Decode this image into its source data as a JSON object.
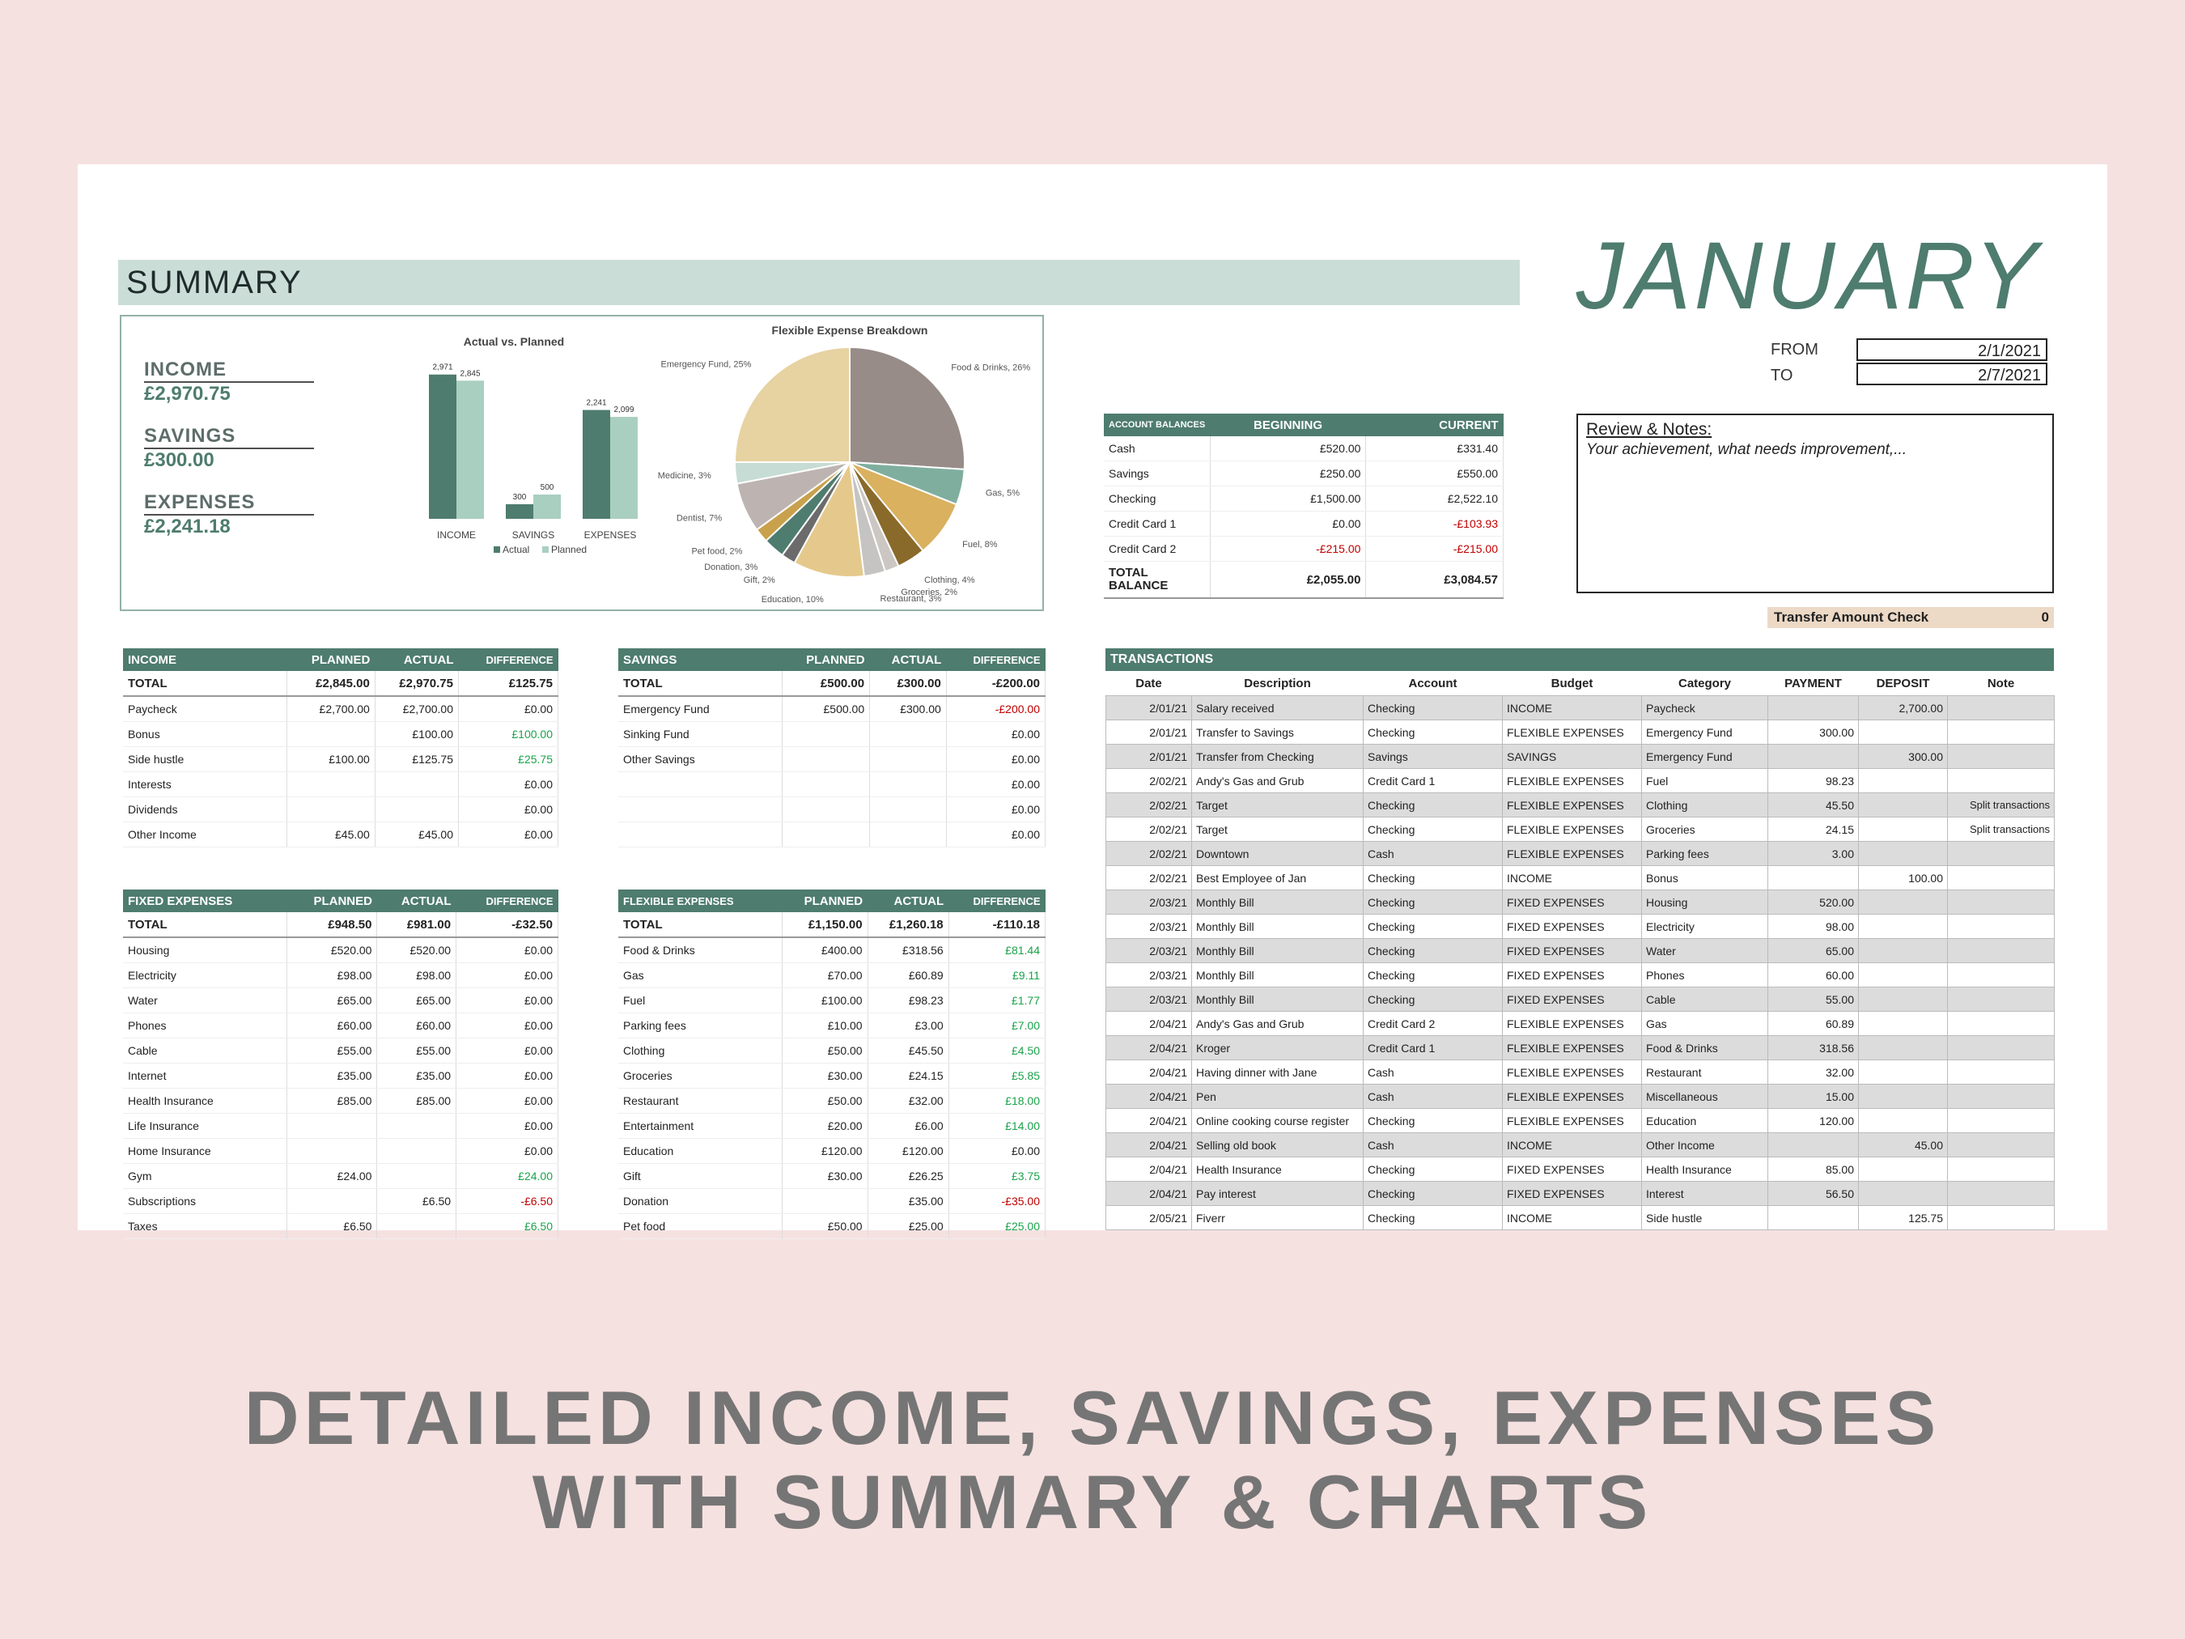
{
  "month": "JANUARY",
  "summary": {
    "title": "SUMMARY",
    "kpis": [
      {
        "label": "INCOME",
        "value": "£2,970.75"
      },
      {
        "label": "SAVINGS",
        "value": "£300.00"
      },
      {
        "label": "EXPENSES",
        "value": "£2,241.18"
      }
    ]
  },
  "dates": {
    "from_label": "FROM",
    "from": "2/1/2021",
    "to_label": "TO",
    "to": "2/7/2021"
  },
  "notes": {
    "title": "Review & Notes:",
    "text": "Your achievement, what needs improvement,..."
  },
  "transfer_check": {
    "label": "Transfer Amount Check",
    "value": "0"
  },
  "accounts": {
    "headers": [
      "ACCOUNT BALANCES",
      "BEGINNING",
      "CURRENT"
    ],
    "rows": [
      [
        "Cash",
        "£520.00",
        "£331.40"
      ],
      [
        "Savings",
        "£250.00",
        "£550.00"
      ],
      [
        "Checking",
        "£1,500.00",
        "£2,522.10"
      ],
      [
        "Credit Card 1",
        "£0.00",
        "-£103.93"
      ],
      [
        "Credit Card 2",
        "-£215.00",
        "-£215.00"
      ]
    ],
    "total": [
      "TOTAL BALANCE",
      "£2,055.00",
      "£3,084.57"
    ]
  },
  "income_table": {
    "headers": [
      "INCOME",
      "PLANNED",
      "ACTUAL",
      "DIFFERENCE"
    ],
    "total": [
      "TOTAL",
      "£2,845.00",
      "£2,970.75",
      "£125.75"
    ],
    "rows": [
      [
        "Paycheck",
        "£2,700.00",
        "£2,700.00",
        "£0.00"
      ],
      [
        "Bonus",
        "",
        "£100.00",
        "£100.00"
      ],
      [
        "Side hustle",
        "£100.00",
        "£125.75",
        "£25.75"
      ],
      [
        "Interests",
        "",
        "",
        "£0.00"
      ],
      [
        "Dividends",
        "",
        "",
        "£0.00"
      ],
      [
        "Other Income",
        "£45.00",
        "£45.00",
        "£0.00"
      ]
    ]
  },
  "savings_table": {
    "headers": [
      "SAVINGS",
      "PLANNED",
      "ACTUAL",
      "DIFFERENCE"
    ],
    "total": [
      "TOTAL",
      "£500.00",
      "£300.00",
      "-£200.00"
    ],
    "rows": [
      [
        "Emergency Fund",
        "£500.00",
        "£300.00",
        "-£200.00"
      ],
      [
        "Sinking Fund",
        "",
        "",
        "£0.00"
      ],
      [
        "Other Savings",
        "",
        "",
        "£0.00"
      ],
      [
        "",
        "",
        "",
        "£0.00"
      ],
      [
        "",
        "",
        "",
        "£0.00"
      ],
      [
        "",
        "",
        "",
        "£0.00"
      ]
    ]
  },
  "fixed_table": {
    "headers": [
      "FIXED EXPENSES",
      "PLANNED",
      "ACTUAL",
      "DIFFERENCE"
    ],
    "total": [
      "TOTAL",
      "£948.50",
      "£981.00",
      "-£32.50"
    ],
    "rows": [
      [
        "Housing",
        "£520.00",
        "£520.00",
        "£0.00"
      ],
      [
        "Electricity",
        "£98.00",
        "£98.00",
        "£0.00"
      ],
      [
        "Water",
        "£65.00",
        "£65.00",
        "£0.00"
      ],
      [
        "Phones",
        "£60.00",
        "£60.00",
        "£0.00"
      ],
      [
        "Cable",
        "£55.00",
        "£55.00",
        "£0.00"
      ],
      [
        "Internet",
        "£35.00",
        "£35.00",
        "£0.00"
      ],
      [
        "Health Insurance",
        "£85.00",
        "£85.00",
        "£0.00"
      ],
      [
        "Life Insurance",
        "",
        "",
        "£0.00"
      ],
      [
        "Home Insurance",
        "",
        "",
        "£0.00"
      ],
      [
        "Gym",
        "£24.00",
        "",
        "£24.00"
      ],
      [
        "Subscriptions",
        "",
        "£6.50",
        "-£6.50"
      ],
      [
        "Taxes",
        "£6.50",
        "",
        "£6.50"
      ]
    ]
  },
  "flex_table": {
    "headers": [
      "FLEXIBLE EXPENSES",
      "PLANNED",
      "ACTUAL",
      "DIFFERENCE"
    ],
    "total": [
      "TOTAL",
      "£1,150.00",
      "£1,260.18",
      "-£110.18"
    ],
    "rows": [
      [
        "Food & Drinks",
        "£400.00",
        "£318.56",
        "£81.44"
      ],
      [
        "Gas",
        "£70.00",
        "£60.89",
        "£9.11"
      ],
      [
        "Fuel",
        "£100.00",
        "£98.23",
        "£1.77"
      ],
      [
        "Parking fees",
        "£10.00",
        "£3.00",
        "£7.00"
      ],
      [
        "Clothing",
        "£50.00",
        "£45.50",
        "£4.50"
      ],
      [
        "Groceries",
        "£30.00",
        "£24.15",
        "£5.85"
      ],
      [
        "Restaurant",
        "£50.00",
        "£32.00",
        "£18.00"
      ],
      [
        "Entertainment",
        "£20.00",
        "£6.00",
        "£14.00"
      ],
      [
        "Education",
        "£120.00",
        "£120.00",
        "£0.00"
      ],
      [
        "Gift",
        "£30.00",
        "£26.25",
        "£3.75"
      ],
      [
        "Donation",
        "",
        "£35.00",
        "-£35.00"
      ],
      [
        "Pet food",
        "£50.00",
        "£25.00",
        "£25.00"
      ]
    ]
  },
  "transactions": {
    "title": "TRANSACTIONS",
    "headers": [
      "Date",
      "Description",
      "Account",
      "Budget",
      "Category",
      "PAYMENT",
      "DEPOSIT",
      "Note"
    ],
    "rows": [
      [
        "2/01/21",
        "Salary received",
        "Checking",
        "INCOME",
        "Paycheck",
        "",
        "2,700.00",
        ""
      ],
      [
        "2/01/21",
        "Transfer to Savings",
        "Checking",
        "FLEXIBLE EXPENSES",
        "Emergency Fund",
        "300.00",
        "",
        ""
      ],
      [
        "2/01/21",
        "Transfer from Checking",
        "Savings",
        "SAVINGS",
        "Emergency Fund",
        "",
        "300.00",
        ""
      ],
      [
        "2/02/21",
        "Andy's Gas and Grub",
        "Credit Card 1",
        "FLEXIBLE EXPENSES",
        "Fuel",
        "98.23",
        "",
        ""
      ],
      [
        "2/02/21",
        "Target",
        "Checking",
        "FLEXIBLE EXPENSES",
        "Clothing",
        "45.50",
        "",
        "Split transactions"
      ],
      [
        "2/02/21",
        "Target",
        "Checking",
        "FLEXIBLE EXPENSES",
        "Groceries",
        "24.15",
        "",
        "Split transactions"
      ],
      [
        "2/02/21",
        "Downtown",
        "Cash",
        "FLEXIBLE EXPENSES",
        "Parking fees",
        "3.00",
        "",
        ""
      ],
      [
        "2/02/21",
        "Best Employee of Jan",
        "Checking",
        "INCOME",
        "Bonus",
        "",
        "100.00",
        ""
      ],
      [
        "2/03/21",
        "Monthly Bill",
        "Checking",
        "FIXED EXPENSES",
        "Housing",
        "520.00",
        "",
        ""
      ],
      [
        "2/03/21",
        "Monthly Bill",
        "Checking",
        "FIXED EXPENSES",
        "Electricity",
        "98.00",
        "",
        ""
      ],
      [
        "2/03/21",
        "Monthly Bill",
        "Checking",
        "FIXED EXPENSES",
        "Water",
        "65.00",
        "",
        ""
      ],
      [
        "2/03/21",
        "Monthly Bill",
        "Checking",
        "FIXED EXPENSES",
        "Phones",
        "60.00",
        "",
        ""
      ],
      [
        "2/03/21",
        "Monthly Bill",
        "Checking",
        "FIXED EXPENSES",
        "Cable",
        "55.00",
        "",
        ""
      ],
      [
        "2/04/21",
        "Andy's Gas and Grub",
        "Credit Card 2",
        "FLEXIBLE EXPENSES",
        "Gas",
        "60.89",
        "",
        ""
      ],
      [
        "2/04/21",
        "Kroger",
        "Credit Card 1",
        "FLEXIBLE EXPENSES",
        "Food & Drinks",
        "318.56",
        "",
        ""
      ],
      [
        "2/04/21",
        "Having dinner with Jane",
        "Cash",
        "FLEXIBLE EXPENSES",
        "Restaurant",
        "32.00",
        "",
        ""
      ],
      [
        "2/04/21",
        "Pen",
        "Cash",
        "FLEXIBLE EXPENSES",
        "Miscellaneous",
        "15.00",
        "",
        ""
      ],
      [
        "2/04/21",
        "Online cooking course register",
        "Checking",
        "FLEXIBLE EXPENSES",
        "Education",
        "120.00",
        "",
        ""
      ],
      [
        "2/04/21",
        "Selling old book",
        "Cash",
        "INCOME",
        "Other Income",
        "",
        "45.00",
        ""
      ],
      [
        "2/04/21",
        "Health Insurance",
        "Checking",
        "FIXED EXPENSES",
        "Health Insurance",
        "85.00",
        "",
        ""
      ],
      [
        "2/04/21",
        "Pay interest",
        "Checking",
        "FIXED EXPENSES",
        "Interest",
        "56.50",
        "",
        ""
      ],
      [
        "2/05/21",
        "Fiverr",
        "Checking",
        "INCOME",
        "Side hustle",
        "",
        "125.75",
        ""
      ]
    ]
  },
  "chart_data": [
    {
      "type": "bar",
      "title": "Actual vs. Planned",
      "categories": [
        "INCOME",
        "SAVINGS",
        "EXPENSES"
      ],
      "series": [
        {
          "name": "Actual",
          "values": [
            2971,
            300,
            2241
          ],
          "color": "#4e7c6e"
        },
        {
          "name": "Planned",
          "values": [
            2845,
            500,
            2099
          ],
          "color": "#a9cfc0"
        }
      ],
      "data_labels": [
        [
          "2,971",
          "300",
          "2,241"
        ],
        [
          "2,845",
          "500",
          "2,099"
        ]
      ],
      "legend": "bottom"
    },
    {
      "type": "pie",
      "title": "Flexible Expense Breakdown",
      "slices": [
        {
          "label": "Food & Drinks, 26%",
          "value": 26,
          "color": "#978c88"
        },
        {
          "label": "Gas, 5%",
          "value": 5,
          "color": "#7fae9f"
        },
        {
          "label": "Fuel, 8%",
          "value": 8,
          "color": "#d9b15f"
        },
        {
          "label": "Clothing, 4%",
          "value": 4,
          "color": "#8a6a2a"
        },
        {
          "label": "Groceries, 2%",
          "value": 2,
          "color": "#ccc7c3"
        },
        {
          "label": "Restaurant, 3%",
          "value": 3,
          "color": "#c6c4c2"
        },
        {
          "label": "Education, 10%",
          "value": 10,
          "color": "#e5c98c"
        },
        {
          "label": "Gift, 2%",
          "value": 2,
          "color": "#6b6b6b"
        },
        {
          "label": "Donation, 3%",
          "value": 3,
          "color": "#4e7c6e"
        },
        {
          "label": "Pet food, 2%",
          "value": 2,
          "color": "#c9a14c"
        },
        {
          "label": "Dentist, 7%",
          "value": 7,
          "color": "#bdb4b1"
        },
        {
          "label": "Medicine, 3%",
          "value": 3,
          "color": "#c6dcd4"
        },
        {
          "label": "Emergency Fund, 25%",
          "value": 25,
          "color": "#e7d2a2"
        }
      ]
    }
  ],
  "caption": {
    "line1": "DETAILED INCOME, SAVINGS, EXPENSES",
    "line2": "WITH SUMMARY & CHARTS"
  }
}
